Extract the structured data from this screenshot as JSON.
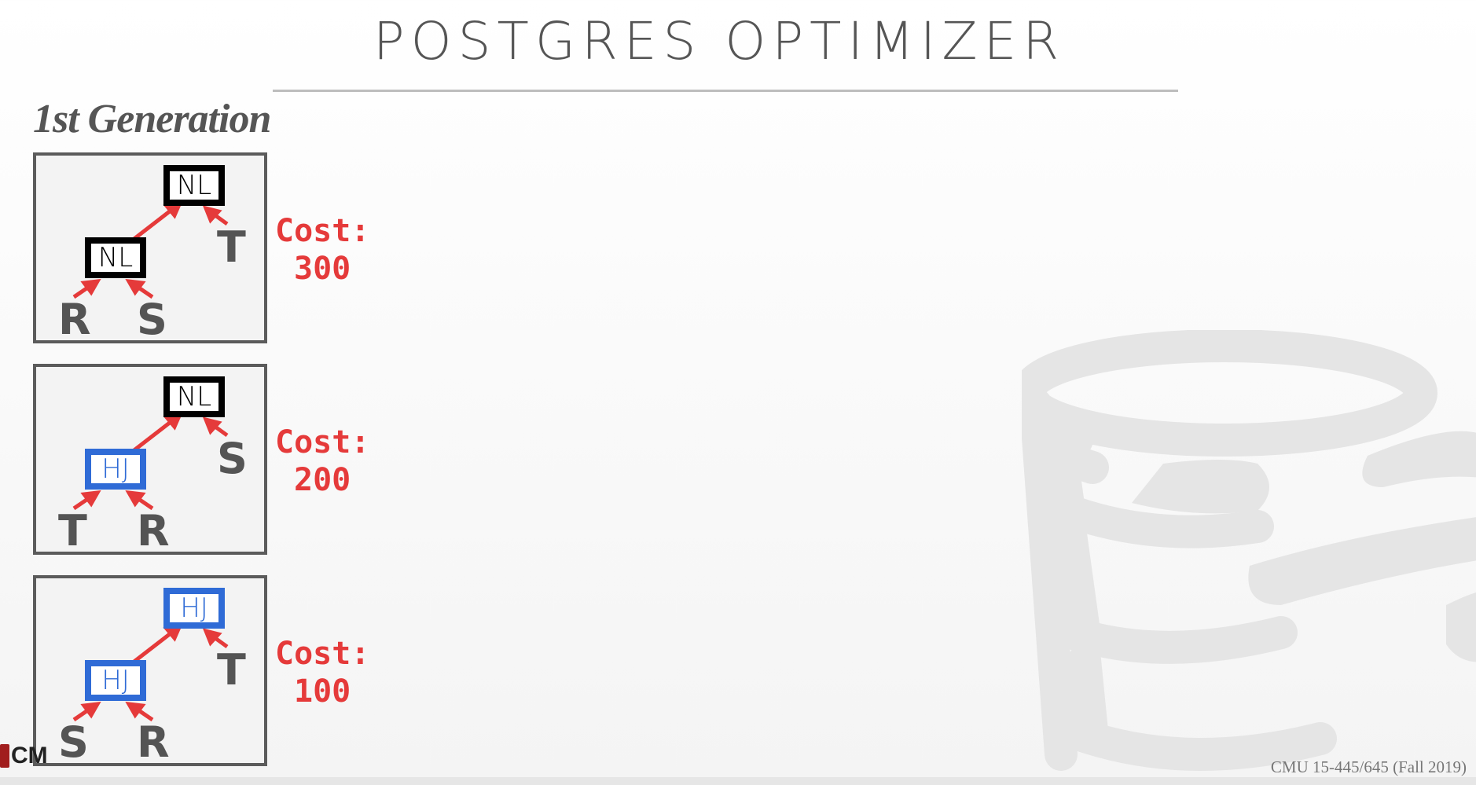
{
  "slide": {
    "title": "POSTGRES OPTIMIZER",
    "subtitle": "1st Generation",
    "footer": "CMU 15-445/645 (Fall 2019)",
    "corner_logo_text": "CM"
  },
  "plans": [
    {
      "top": {
        "label": "NL",
        "kind": "nl"
      },
      "mid": {
        "label": "NL",
        "kind": "nl"
      },
      "leaf_right": "T",
      "leaf_left": "R",
      "leaf_mid": "S",
      "cost_label": "Cost:",
      "cost_value": "300"
    },
    {
      "top": {
        "label": "NL",
        "kind": "nl"
      },
      "mid": {
        "label": "HJ",
        "kind": "hj"
      },
      "leaf_right": "S",
      "leaf_left": "T",
      "leaf_mid": "R",
      "cost_label": "Cost:",
      "cost_value": "200"
    },
    {
      "top": {
        "label": "HJ",
        "kind": "hj"
      },
      "mid": {
        "label": "HJ",
        "kind": "hj"
      },
      "leaf_right": "T",
      "leaf_left": "S",
      "leaf_mid": "R",
      "cost_label": "Cost:",
      "cost_value": "100"
    }
  ],
  "colors": {
    "arrow": "#e53a3a",
    "nested_loop_border": "#000000",
    "hash_join_border": "#2f6bd6",
    "cost_text": "#e53a3a"
  },
  "icons": {
    "background": "database-cylinder-icon",
    "arrows": "red-arrow-icon"
  }
}
